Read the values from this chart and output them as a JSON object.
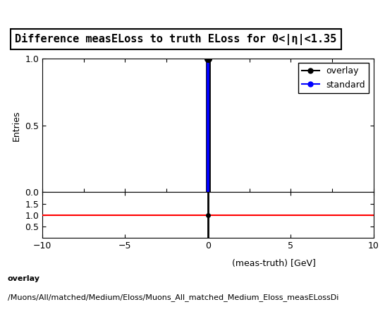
{
  "title": "Difference measELoss to truth ELoss for 0<|η|<1.35",
  "xlabel": "(meas-truth) [GeV]",
  "ylabel_main": "Entries",
  "xlim": [
    -10,
    10
  ],
  "ylim_main": [
    0,
    1.0
  ],
  "ylim_ratio": [
    0,
    2.0
  ],
  "ratio_yticks": [
    0.5,
    1.0,
    1.5
  ],
  "main_yticks": [
    0,
    0.5,
    1.0
  ],
  "spike_x": 0.0,
  "spike_y": 1.0,
  "overlay_color": "#000000",
  "standard_color": "#0000ff",
  "ratio_line_color": "#ff0000",
  "legend_entries": [
    "overlay",
    "standard"
  ],
  "bg_color": "#ffffff",
  "footer_text_line1": "overlay",
  "footer_text_line2": "/Muons/All/matched/Medium/Eloss/Muons_All_matched_Medium_Eloss_measELossDi",
  "title_fontsize": 11,
  "label_fontsize": 9,
  "tick_fontsize": 9,
  "legend_fontsize": 9,
  "footer_fontsize": 8
}
